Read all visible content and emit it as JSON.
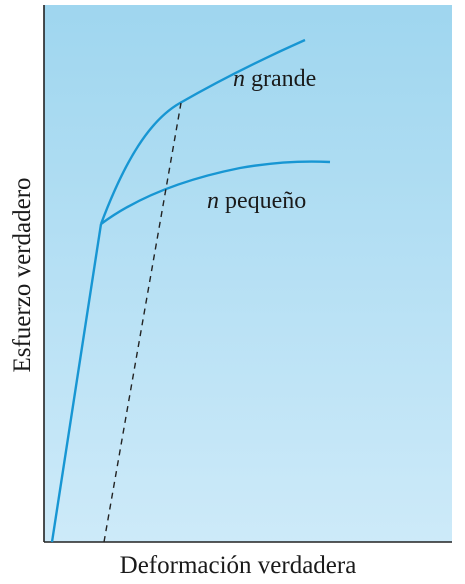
{
  "figure": {
    "xlabel": "Deformación verdadera",
    "ylabel": "Esfuerzo verdadero",
    "curves": [
      {
        "name_prefix": "n",
        "name_suffix": " grande"
      },
      {
        "name_prefix": "n",
        "name_suffix": " pequeño"
      }
    ],
    "colors": {
      "background_top": "#9fd6ef",
      "background_bottom": "#cdeaf9",
      "curve": "#1796d3",
      "axis": "#222222",
      "dashed": "#222222"
    }
  }
}
